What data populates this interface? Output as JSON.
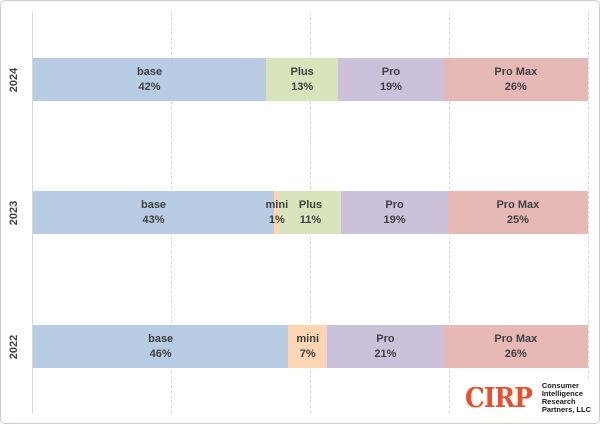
{
  "chart_data": {
    "type": "bar",
    "variant": "horizontal-stacked",
    "title": "",
    "xlabel": "",
    "ylabel": "",
    "xlim": [
      0,
      100
    ],
    "grid": "vertical-dashed",
    "gridlines_pct": [
      25,
      50,
      75,
      100
    ],
    "categories": [
      "2024",
      "2023",
      "2022"
    ],
    "legend": "none",
    "colors": {
      "base": "#b8cce4",
      "mini": "#fbd5b4",
      "Plus": "#d7e4bc",
      "Pro": "#ccc1da",
      "Pro Max": "#e6b9b7"
    },
    "rows": [
      {
        "year": "2024",
        "segments": [
          {
            "label": "base",
            "value": 42,
            "pct": "42%",
            "color": "#b8cce4"
          },
          {
            "label": "Plus",
            "value": 13,
            "pct": "13%",
            "color": "#d7e4bc"
          },
          {
            "label": "Pro",
            "value": 19,
            "pct": "19%",
            "color": "#ccc1da"
          },
          {
            "label": "Pro Max",
            "value": 26,
            "pct": "26%",
            "color": "#e6b9b7"
          }
        ]
      },
      {
        "year": "2023",
        "segments": [
          {
            "label": "base",
            "value": 43,
            "pct": "43%",
            "color": "#b8cce4"
          },
          {
            "label": "mini",
            "value": 1,
            "pct": "1%",
            "color": "#fbd5b4"
          },
          {
            "label": "Plus",
            "value": 11,
            "pct": "11%",
            "color": "#d7e4bc"
          },
          {
            "label": "Pro",
            "value": 19,
            "pct": "19%",
            "color": "#ccc1da"
          },
          {
            "label": "Pro Max",
            "value": 25,
            "pct": "25%",
            "color": "#e6b9b7"
          }
        ]
      },
      {
        "year": "2022",
        "segments": [
          {
            "label": "base",
            "value": 46,
            "pct": "46%",
            "color": "#b8cce4"
          },
          {
            "label": "mini",
            "value": 7,
            "pct": "7%",
            "color": "#fbd5b4"
          },
          {
            "label": "Pro",
            "value": 21,
            "pct": "21%",
            "color": "#ccc1da"
          },
          {
            "label": "Pro Max",
            "value": 26,
            "pct": "26%",
            "color": "#e6b9b7"
          }
        ]
      }
    ]
  },
  "logo": {
    "abbr": "CIRP",
    "abbr_color": "#e8502d",
    "lines": [
      "Consumer",
      "Intelligence",
      "Research",
      "Partners, LLC"
    ]
  }
}
